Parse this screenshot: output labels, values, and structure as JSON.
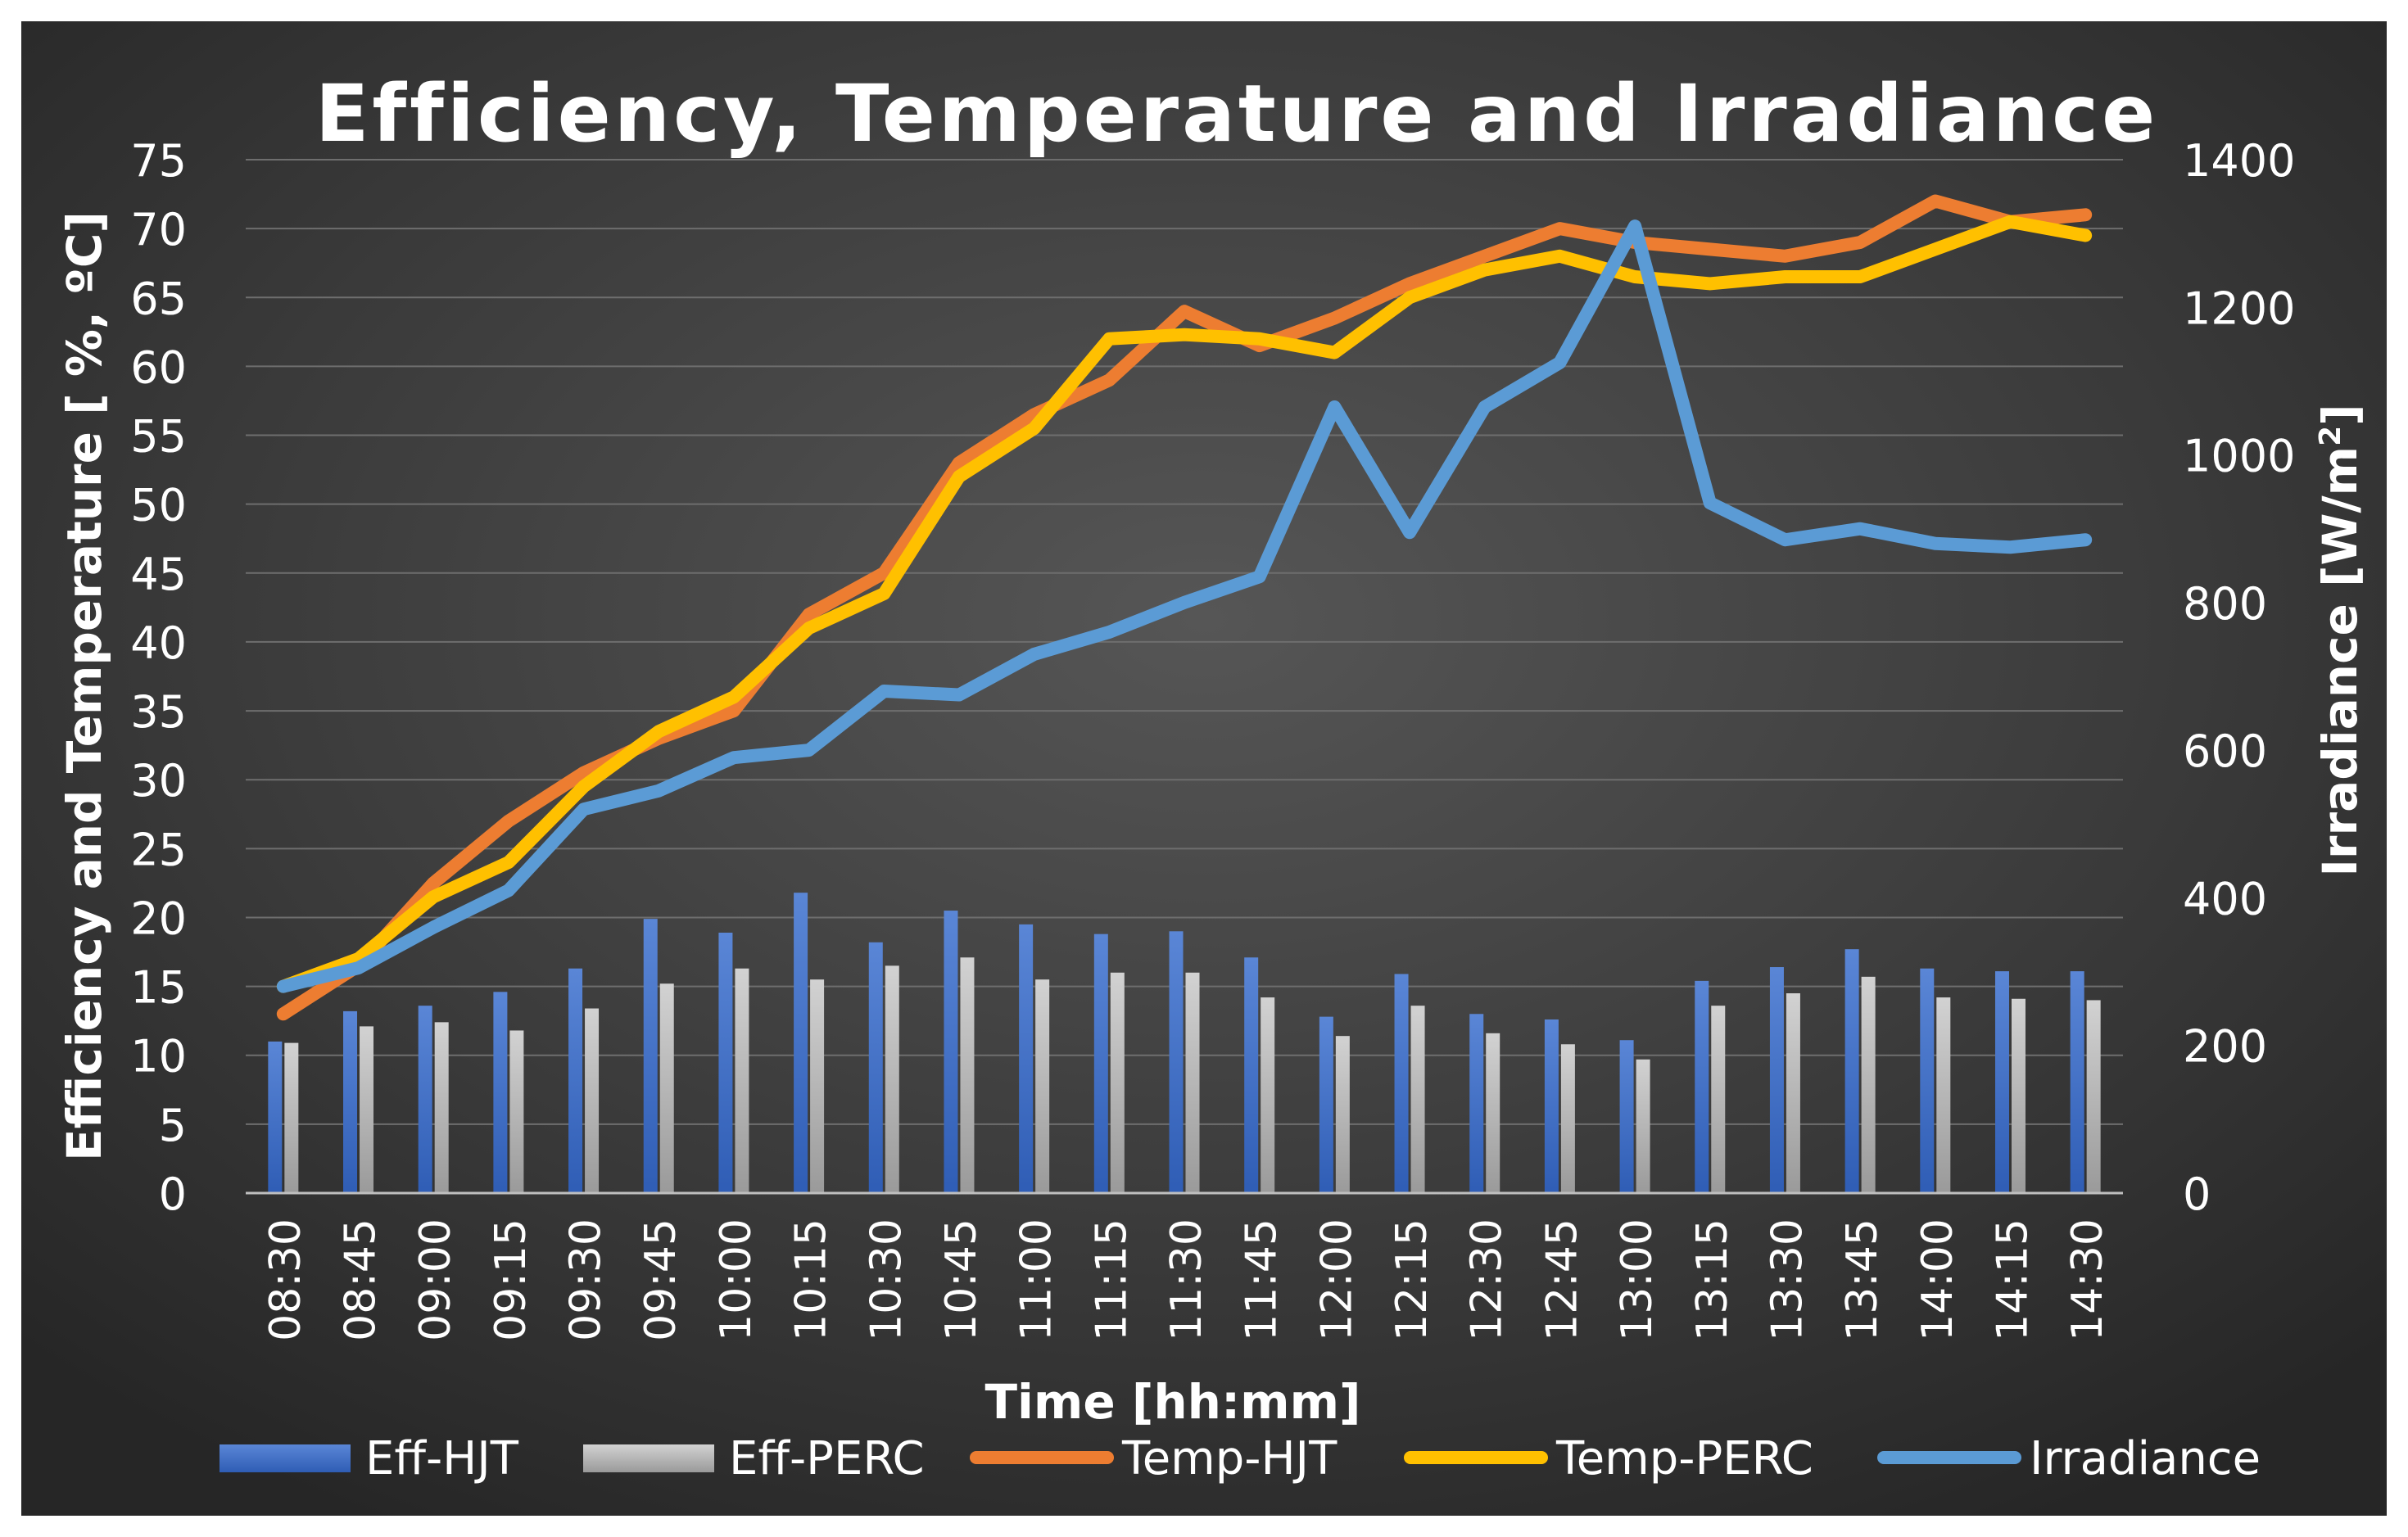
{
  "chart_data": {
    "type": "bar+line",
    "title": "Efficiency, Temperature and Irradiance",
    "xlabel": "Time [hh:mm]",
    "ylabel": "Efficiency and Temperature [ %, ºC]",
    "y2label_main": "Irradiance [W/m",
    "y2label_sup": "2",
    "y2label_close": "]",
    "ylim": [
      0,
      75
    ],
    "y2lim": [
      0,
      1400
    ],
    "yticks": [
      "0",
      "5",
      "10",
      "15",
      "20",
      "25",
      "30",
      "35",
      "40",
      "45",
      "50",
      "55",
      "60",
      "65",
      "70",
      "75"
    ],
    "y2ticks": [
      "0",
      "200",
      "400",
      "600",
      "800",
      "1000",
      "1200",
      "1400"
    ],
    "categories": [
      "08:30",
      "08:45",
      "09:00",
      "09:15",
      "09:30",
      "09:45",
      "10:00",
      "10:15",
      "10:30",
      "10:45",
      "11:00",
      "11:15",
      "11:30",
      "11:45",
      "12:00",
      "12:15",
      "12:30",
      "12:45",
      "13:00",
      "13:15",
      "13:30",
      "13:45",
      "14:00",
      "14:15",
      "14:30"
    ],
    "series": [
      {
        "name": "Eff-HJT",
        "kind": "bar",
        "axis": "left",
        "color": "#4472C4",
        "values": [
          11.0,
          13.2,
          13.6,
          14.6,
          16.3,
          19.9,
          18.9,
          21.8,
          18.2,
          20.5,
          19.5,
          18.8,
          19.0,
          17.1,
          12.8,
          15.9,
          13.0,
          12.6,
          11.1,
          15.4,
          16.4,
          17.7,
          16.3,
          16.1,
          16.1
        ]
      },
      {
        "name": "Eff-PERC",
        "kind": "bar",
        "axis": "left",
        "color": "#B7B7B7",
        "values": [
          10.9,
          12.1,
          12.4,
          11.8,
          13.4,
          15.2,
          16.3,
          15.5,
          16.5,
          17.1,
          15.5,
          16.0,
          16.0,
          14.2,
          11.4,
          13.6,
          11.6,
          10.8,
          9.7,
          13.6,
          14.5,
          15.7,
          14.2,
          14.1,
          14.0
        ]
      },
      {
        "name": "Temp-HJT",
        "kind": "line",
        "axis": "left",
        "color": "#ED7D31",
        "values": [
          13.0,
          16.5,
          22.5,
          27.0,
          30.5,
          33.0,
          35.0,
          42.0,
          45.0,
          53.0,
          56.5,
          59.0,
          64.0,
          61.5,
          63.5,
          66.0,
          68.0,
          70.0,
          69.0,
          68.5,
          68.0,
          69.0,
          72.0,
          70.5,
          71.0
        ]
      },
      {
        "name": "Temp-PERC",
        "kind": "line",
        "axis": "left",
        "color": "#FFC000",
        "values": [
          15.0,
          17.0,
          21.5,
          24.0,
          29.5,
          33.5,
          36.0,
          41.0,
          43.5,
          52.0,
          55.5,
          62.0,
          62.3,
          62.0,
          61.0,
          65.0,
          67.0,
          68.0,
          66.5,
          66.0,
          66.5,
          66.5,
          68.5,
          70.5,
          69.5
        ]
      },
      {
        "name": "Irradiance",
        "kind": "line",
        "axis": "right",
        "color": "#5B9BD5",
        "values": [
          280,
          305,
          360,
          410,
          520,
          545,
          590,
          600,
          680,
          675,
          730,
          760,
          800,
          835,
          1065,
          895,
          1065,
          1125,
          1310,
          935,
          885,
          900,
          880,
          875,
          885
        ]
      }
    ],
    "legend_position": "bottom",
    "grid": true
  }
}
